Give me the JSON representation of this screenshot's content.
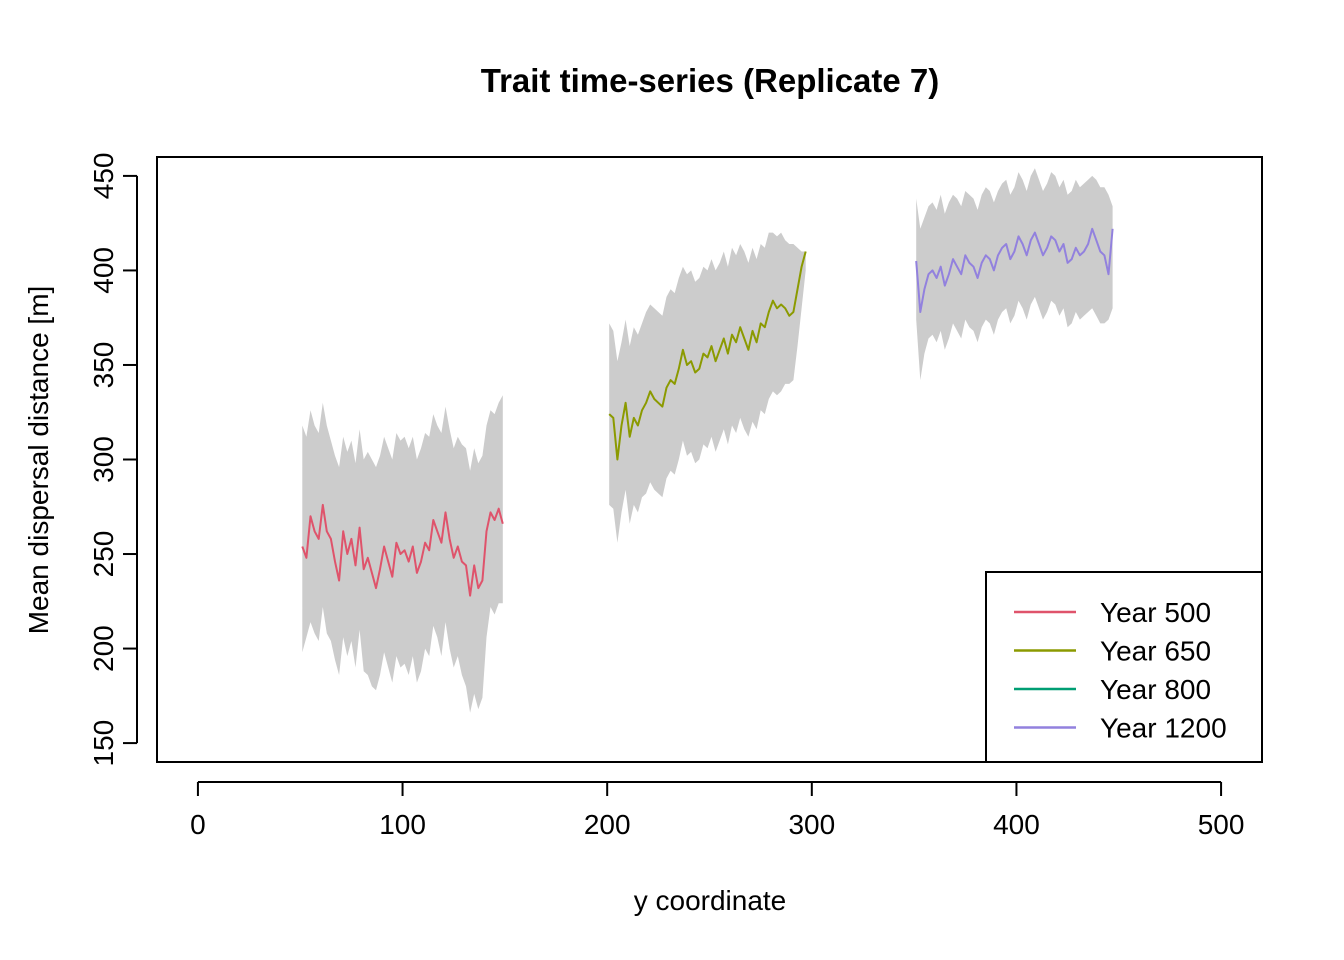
{
  "chart_data": {
    "type": "line",
    "title": "Trait time-series (Replicate 7)",
    "xlabel": "y coordinate",
    "ylabel": "Mean dispersal distance [m]",
    "xlim": [
      -20,
      520
    ],
    "ylim": [
      140,
      460
    ],
    "x_ticks": [
      0,
      100,
      200,
      300,
      400,
      500
    ],
    "y_ticks": [
      150,
      200,
      250,
      300,
      350,
      400,
      450
    ],
    "grid": false,
    "legend_position": "bottom-right",
    "band_color": "#CCCCCC",
    "series": [
      {
        "name": "Year 500",
        "color": "#DF536B",
        "x": [
          51,
          53,
          55,
          57,
          59,
          61,
          63,
          65,
          67,
          69,
          71,
          73,
          75,
          77,
          79,
          81,
          83,
          85,
          87,
          89,
          91,
          93,
          95,
          97,
          99,
          101,
          103,
          105,
          107,
          109,
          111,
          113,
          115,
          117,
          119,
          121,
          123,
          125,
          127,
          129,
          131,
          133,
          135,
          137,
          139,
          141,
          143,
          145,
          147,
          149
        ],
        "y": [
          254,
          248,
          270,
          262,
          258,
          276,
          262,
          258,
          246,
          236,
          262,
          250,
          258,
          244,
          264,
          242,
          248,
          240,
          232,
          242,
          254,
          246,
          238,
          256,
          250,
          252,
          246,
          254,
          240,
          246,
          256,
          252,
          268,
          262,
          256,
          272,
          258,
          248,
          254,
          246,
          244,
          228,
          244,
          232,
          236,
          262,
          272,
          268,
          274,
          266
        ],
        "upper": [
          318,
          312,
          326,
          318,
          314,
          330,
          318,
          310,
          302,
          296,
          312,
          304,
          310,
          298,
          316,
          300,
          304,
          300,
          296,
          302,
          312,
          306,
          300,
          314,
          310,
          312,
          306,
          312,
          300,
          306,
          314,
          312,
          324,
          318,
          314,
          328,
          316,
          306,
          312,
          308,
          306,
          294,
          306,
          298,
          302,
          318,
          326,
          324,
          330,
          334
        ],
        "lower": [
          198,
          206,
          214,
          208,
          204,
          222,
          208,
          204,
          194,
          186,
          206,
          196,
          204,
          190,
          210,
          188,
          186,
          180,
          178,
          186,
          198,
          190,
          182,
          196,
          190,
          192,
          186,
          196,
          182,
          188,
          200,
          196,
          212,
          206,
          196,
          214,
          200,
          190,
          196,
          186,
          180,
          166,
          176,
          168,
          174,
          206,
          222,
          218,
          224,
          224
        ]
      },
      {
        "name": "Year 650",
        "color": "#8B9A00",
        "x": [
          201,
          203,
          205,
          207,
          209,
          211,
          213,
          215,
          217,
          219,
          221,
          223,
          225,
          227,
          229,
          231,
          233,
          235,
          237,
          239,
          241,
          243,
          245,
          247,
          249,
          251,
          253,
          255,
          257,
          259,
          261,
          263,
          265,
          267,
          269,
          271,
          273,
          275,
          277,
          279,
          281,
          283,
          285,
          287,
          289,
          291,
          293,
          295,
          297
        ],
        "y": [
          324,
          322,
          300,
          318,
          330,
          312,
          322,
          318,
          326,
          330,
          336,
          332,
          330,
          328,
          338,
          342,
          340,
          348,
          358,
          350,
          352,
          346,
          348,
          356,
          354,
          360,
          352,
          358,
          364,
          356,
          366,
          362,
          370,
          364,
          358,
          368,
          362,
          372,
          370,
          378,
          384,
          380,
          382,
          380,
          376,
          378,
          390,
          402,
          410
        ],
        "upper": [
          372,
          368,
          352,
          362,
          374,
          360,
          370,
          366,
          372,
          378,
          382,
          380,
          378,
          376,
          386,
          390,
          388,
          396,
          402,
          398,
          400,
          394,
          396,
          402,
          400,
          406,
          400,
          404,
          410,
          402,
          412,
          408,
          414,
          410,
          404,
          412,
          406,
          414,
          412,
          420,
          420,
          418,
          420,
          416,
          414,
          414,
          412,
          410,
          410
        ],
        "lower": [
          276,
          274,
          256,
          272,
          284,
          266,
          276,
          272,
          280,
          282,
          288,
          284,
          282,
          280,
          290,
          294,
          292,
          300,
          310,
          302,
          304,
          298,
          300,
          308,
          306,
          312,
          304,
          310,
          316,
          308,
          318,
          314,
          322,
          316,
          312,
          320,
          316,
          326,
          324,
          332,
          336,
          334,
          336,
          340,
          340,
          342,
          360,
          380,
          400
        ]
      },
      {
        "name": "Year 800",
        "color": "#009E73",
        "x": [],
        "y": []
      },
      {
        "name": "Year 1200",
        "color": "#9281DE",
        "x": [
          351,
          353,
          355,
          357,
          359,
          361,
          363,
          365,
          367,
          369,
          371,
          373,
          375,
          377,
          379,
          381,
          383,
          385,
          387,
          389,
          391,
          393,
          395,
          397,
          399,
          401,
          403,
          405,
          407,
          409,
          411,
          413,
          415,
          417,
          419,
          421,
          423,
          425,
          427,
          429,
          431,
          433,
          435,
          437,
          439,
          441,
          443,
          445,
          447
        ],
        "y": [
          405,
          378,
          390,
          398,
          400,
          396,
          402,
          392,
          398,
          406,
          402,
          398,
          408,
          404,
          402,
          396,
          404,
          408,
          406,
          400,
          408,
          412,
          414,
          406,
          410,
          418,
          414,
          408,
          416,
          420,
          414,
          408,
          412,
          418,
          416,
          410,
          414,
          404,
          406,
          412,
          408,
          410,
          414,
          422,
          416,
          410,
          408,
          398,
          422
        ],
        "upper": [
          438,
          422,
          428,
          434,
          436,
          432,
          440,
          430,
          436,
          440,
          438,
          434,
          442,
          440,
          438,
          432,
          440,
          444,
          442,
          436,
          442,
          446,
          448,
          440,
          444,
          452,
          448,
          442,
          450,
          454,
          448,
          442,
          446,
          452,
          450,
          444,
          448,
          440,
          442,
          448,
          444,
          446,
          448,
          450,
          448,
          444,
          444,
          440,
          434
        ],
        "lower": [
          374,
          342,
          356,
          364,
          366,
          362,
          368,
          358,
          364,
          372,
          368,
          364,
          374,
          370,
          368,
          362,
          370,
          374,
          372,
          366,
          374,
          378,
          380,
          372,
          376,
          384,
          380,
          374,
          382,
          386,
          380,
          374,
          378,
          384,
          382,
          376,
          380,
          370,
          372,
          378,
          374,
          376,
          378,
          380,
          376,
          372,
          372,
          374,
          380
        ]
      }
    ]
  }
}
